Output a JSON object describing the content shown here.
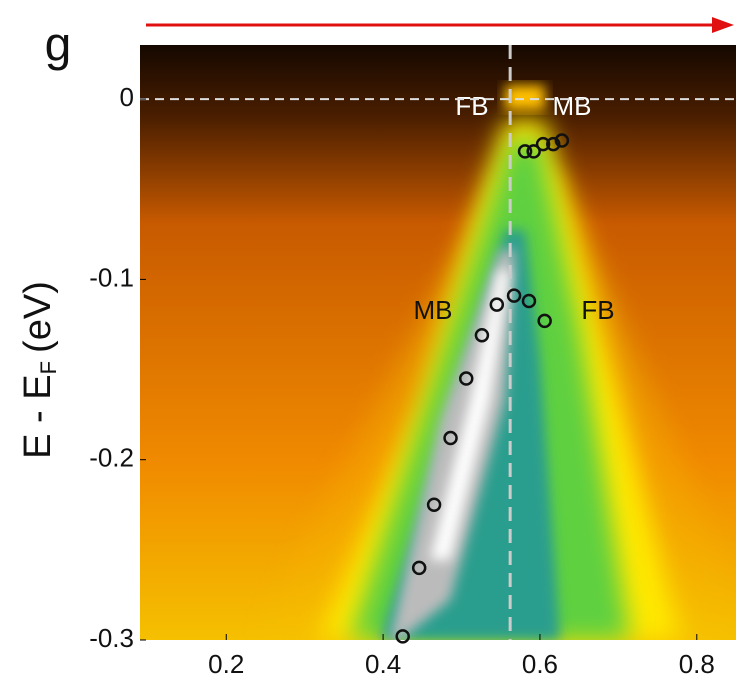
{
  "panel_label": "g",
  "chart_data": {
    "type": "scatter",
    "ylabel": {
      "main": "E - E",
      "sub": "F",
      "unit": "(eV)"
    },
    "xlim": [
      0.09,
      0.85
    ],
    "ylim": [
      -0.3,
      0.03
    ],
    "xticks": [
      0.2,
      0.4,
      0.6,
      0.8
    ],
    "yticks": [
      0,
      -0.1,
      -0.2,
      -0.3
    ],
    "hline": 0,
    "vline": 0.562,
    "marker_color": "#111111",
    "annotations": [
      "FB",
      "MB",
      "MB",
      "FB"
    ],
    "x": [
      0.581,
      0.592,
      0.604,
      0.617,
      0.628,
      0.545,
      0.567,
      0.586,
      0.606,
      0.526,
      0.506,
      0.486,
      0.465,
      0.446,
      0.425
    ],
    "y": [
      -0.029,
      -0.029,
      -0.025,
      -0.025,
      -0.023,
      -0.114,
      -0.109,
      -0.112,
      -0.123,
      -0.131,
      -0.155,
      -0.188,
      -0.225,
      -0.26,
      -0.298
    ]
  }
}
